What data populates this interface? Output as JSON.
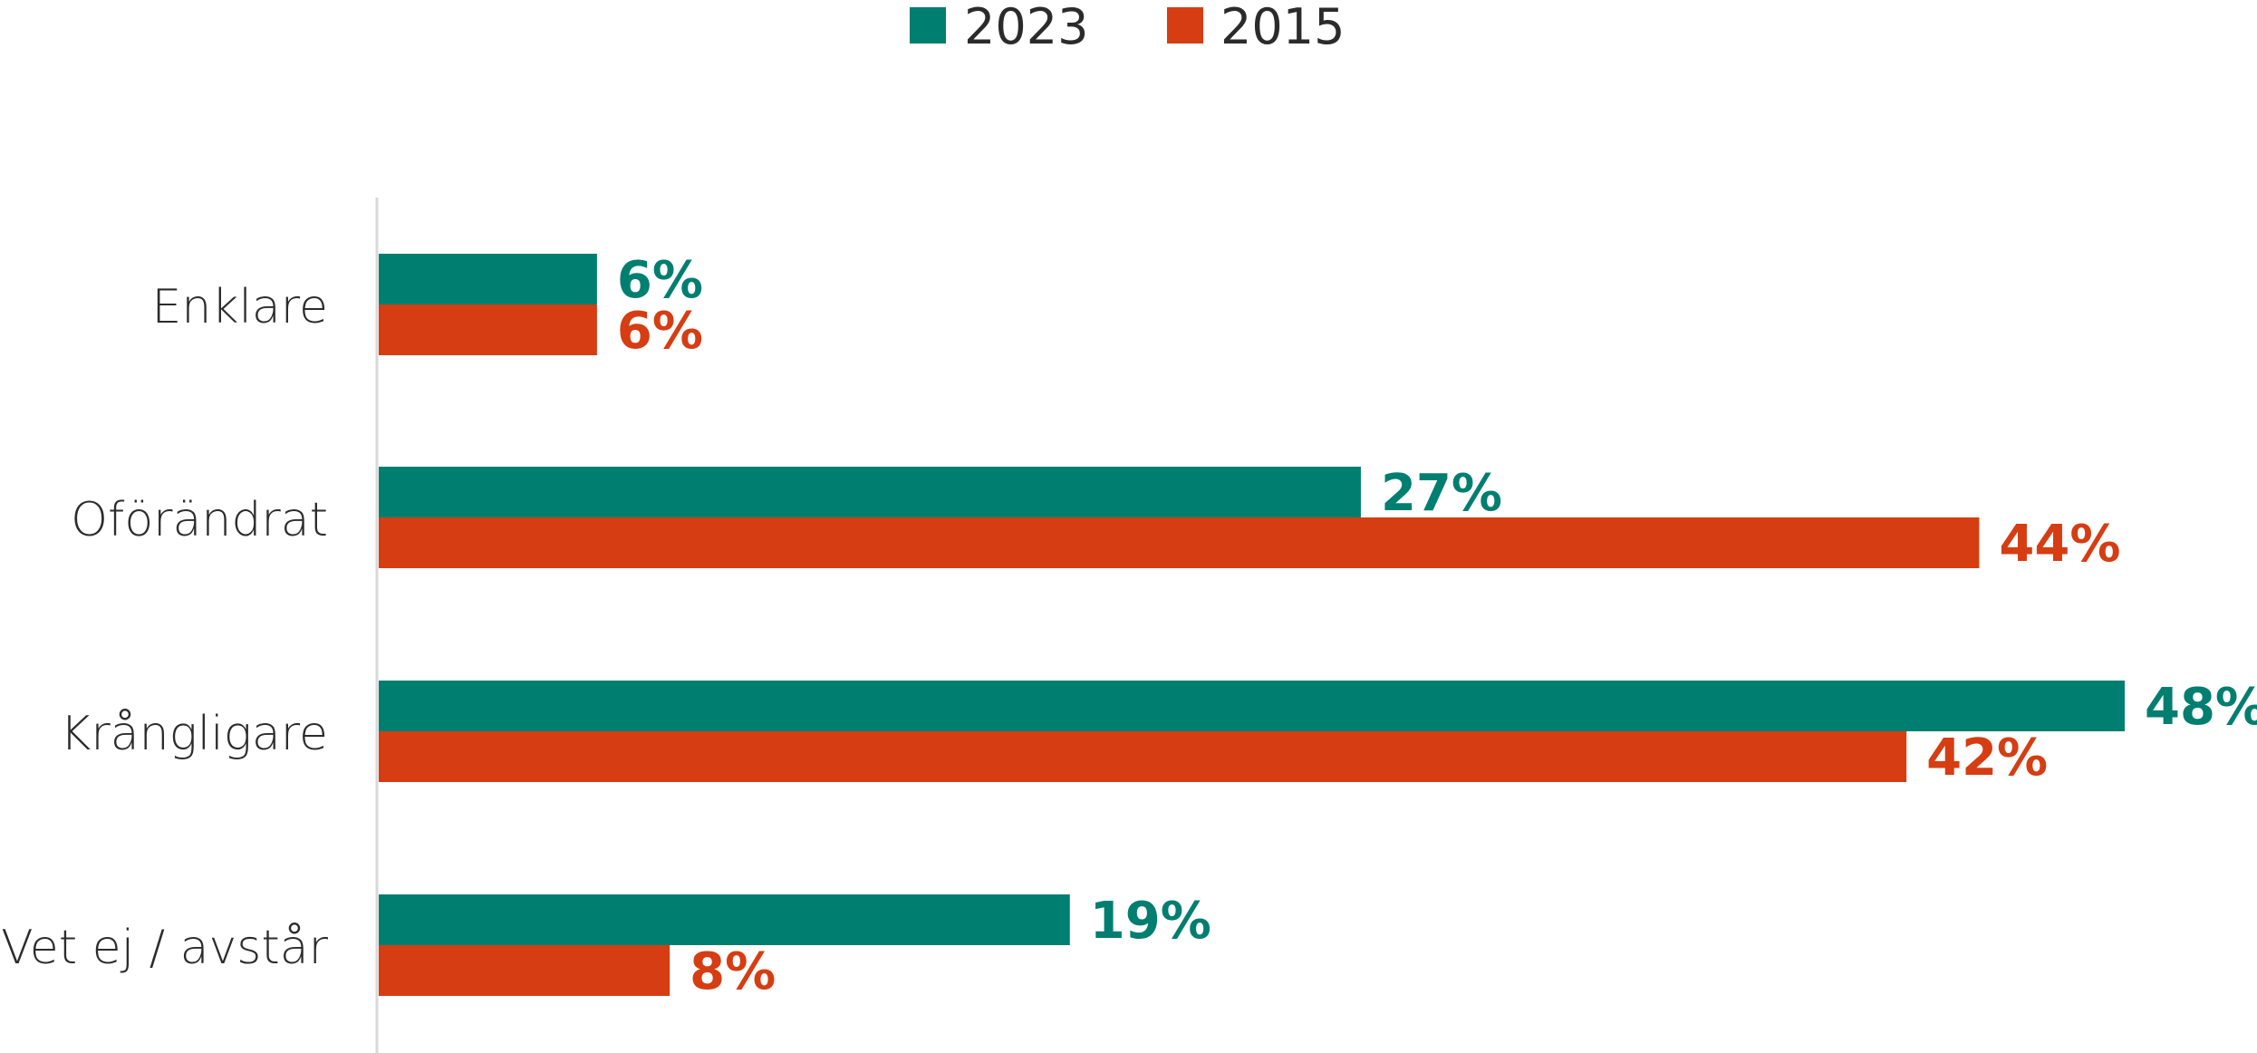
{
  "chart_data": {
    "type": "bar",
    "orientation": "horizontal",
    "categories": [
      "Enklare",
      "Oförändrat",
      "Krångligare",
      "Vet ej / avstår"
    ],
    "series": [
      {
        "name": "2023",
        "color": "#007e70",
        "values": [
          6,
          27,
          48,
          19
        ],
        "labels": [
          "6%",
          "27%",
          "48%",
          "19%"
        ]
      },
      {
        "name": "2015",
        "color": "#d63d12",
        "values": [
          6,
          44,
          42,
          8
        ],
        "labels": [
          "6%",
          "44%",
          "42%",
          "8%"
        ]
      }
    ],
    "xlim": [
      0,
      48
    ],
    "grid": false,
    "legend": "top-center"
  }
}
